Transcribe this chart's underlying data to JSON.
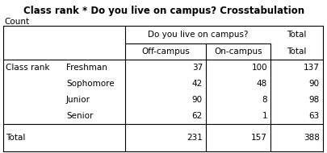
{
  "title": "Class rank * Do you live on campus? Crosstabulation",
  "count_label": "Count",
  "col_header_group": "Do you live on campus?",
  "col_headers": [
    "Off-campus",
    "On-campus",
    "Total"
  ],
  "row_group_label": "Class rank",
  "row_labels": [
    "Freshman",
    "Sophomore",
    "Junior",
    "Senior"
  ],
  "data": [
    [
      37,
      100,
      137
    ],
    [
      42,
      48,
      90
    ],
    [
      90,
      8,
      98
    ],
    [
      62,
      1,
      63
    ]
  ],
  "totals": [
    231,
    157,
    388
  ],
  "total_label": "Total",
  "bg_color": "#ffffff",
  "line_color": "#000000",
  "title_fontsize": 8.5,
  "cell_fontsize": 7.5
}
